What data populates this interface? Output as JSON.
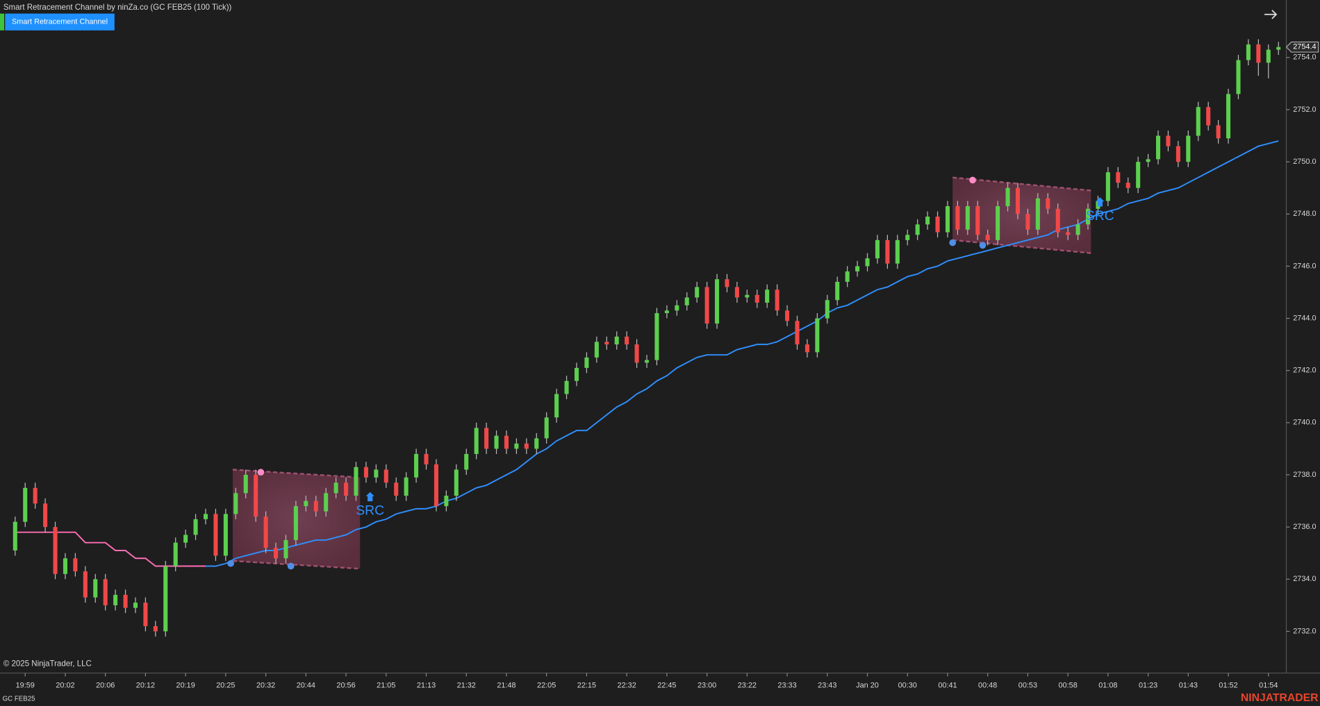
{
  "header": {
    "title": "Smart Retracement Channel by ninZa.co (GC FEB25 (100 Tick))",
    "button": "Smart Retracement Channel"
  },
  "footer": {
    "copyright": "© 2025 NinjaTrader, LLC",
    "instrument": "GC FEB25",
    "logo": "NINJATRADER"
  },
  "chart_data": {
    "type": "candlestick",
    "categories": [
      null,
      "19:59",
      null,
      null,
      null,
      "20:02",
      null,
      null,
      null,
      "20:06",
      null,
      null,
      null,
      "20:12",
      null,
      null,
      null,
      "20:19",
      null,
      null,
      null,
      "20:25",
      null,
      null,
      null,
      "20:32",
      null,
      null,
      null,
      "20:44",
      null,
      null,
      null,
      "20:56",
      null,
      null,
      null,
      "21:05",
      null,
      null,
      null,
      "21:13",
      null,
      null,
      null,
      "21:32",
      null,
      null,
      null,
      "21:48",
      null,
      null,
      null,
      "22:05",
      null,
      null,
      null,
      "22:15",
      null,
      null,
      null,
      "22:32",
      null,
      null,
      null,
      "22:45",
      null,
      null,
      null,
      "23:00",
      null,
      null,
      null,
      "23:22",
      null,
      null,
      null,
      "23:33",
      null,
      null,
      null,
      "23:43",
      null,
      null,
      null,
      "Jan 20",
      null,
      null,
      null,
      "00:30",
      null,
      null,
      null,
      "00:41",
      null,
      null,
      null,
      "00:48",
      null,
      null,
      null,
      "00:53",
      null,
      null,
      null,
      "00:58",
      null,
      null,
      null,
      "01:08",
      null,
      null,
      null,
      "01:23",
      null,
      null,
      null,
      "01:43",
      null,
      null,
      null,
      "01:52",
      null,
      null,
      null,
      "01:54",
      null
    ],
    "open": [
      2735.1,
      2736.2,
      2737.5,
      2736.9,
      2736.0,
      2734.2,
      2734.8,
      2734.3,
      2733.3,
      2734.0,
      2733.0,
      2733.4,
      2732.9,
      2733.1,
      2732.2,
      2732.0,
      2734.5,
      2735.4,
      2735.7,
      2736.3,
      2736.5,
      2734.9,
      2736.5,
      2737.3,
      2738.0,
      2736.4,
      2735.2,
      2734.8,
      2735.5,
      2736.8,
      2737.0,
      2736.6,
      2737.3,
      2737.7,
      2737.2,
      2738.3,
      2737.9,
      2738.2,
      2737.7,
      2737.2,
      2737.9,
      2738.8,
      2738.4,
      2736.8,
      2737.2,
      2738.2,
      2738.8,
      2739.8,
      2739.0,
      2739.5,
      2739.0,
      2739.2,
      2739.0,
      2739.4,
      2740.2,
      2741.1,
      2741.6,
      2742.1,
      2742.5,
      2743.1,
      2743.0,
      2743.3,
      2743.0,
      2742.3,
      2742.4,
      2744.2,
      2744.3,
      2744.5,
      2744.8,
      2745.2,
      2743.8,
      2745.5,
      2745.2,
      2744.8,
      2744.9,
      2744.6,
      2745.1,
      2744.3,
      2743.9,
      2743.0,
      2742.7,
      2744.0,
      2744.7,
      2745.4,
      2745.8,
      2746.0,
      2746.3,
      2747.0,
      2746.1,
      2747.0,
      2747.2,
      2747.6,
      2747.9,
      2747.3,
      2748.3,
      2747.4,
      2748.3,
      2747.2,
      2747.0,
      2748.3,
      2749.0,
      2748.0,
      2747.4,
      2748.6,
      2748.2,
      2747.3,
      2747.2,
      2747.6,
      2748.2,
      2748.5,
      2749.6,
      2749.2,
      2749.0,
      2750.0,
      2750.1,
      2751.0,
      2750.6,
      2750.0,
      2751.0,
      2752.1,
      2751.4,
      2750.9,
      2752.6,
      2753.9,
      2754.5,
      2753.8,
      2754.3
    ],
    "high": [
      2736.4,
      2737.7,
      2737.7,
      2737.1,
      2736.2,
      2735.0,
      2735.0,
      2734.5,
      2734.2,
      2734.2,
      2733.6,
      2733.6,
      2733.3,
      2733.3,
      2732.4,
      2734.7,
      2735.6,
      2735.9,
      2736.5,
      2736.7,
      2736.7,
      2736.7,
      2737.5,
      2738.2,
      2738.2,
      2736.6,
      2735.4,
      2735.7,
      2737.0,
      2737.2,
      2737.2,
      2737.5,
      2737.9,
      2737.9,
      2738.5,
      2738.5,
      2738.4,
      2738.4,
      2737.9,
      2738.1,
      2739.0,
      2739.0,
      2738.6,
      2737.4,
      2738.4,
      2739.0,
      2740.0,
      2740.0,
      2739.7,
      2739.7,
      2739.4,
      2739.4,
      2739.6,
      2740.4,
      2741.3,
      2741.8,
      2742.3,
      2742.7,
      2743.3,
      2743.3,
      2743.5,
      2743.5,
      2743.2,
      2742.6,
      2744.4,
      2744.5,
      2744.7,
      2745.0,
      2745.4,
      2745.4,
      2745.7,
      2745.7,
      2745.4,
      2745.1,
      2745.1,
      2745.3,
      2745.3,
      2744.5,
      2744.1,
      2743.2,
      2744.2,
      2744.9,
      2745.6,
      2746.0,
      2746.2,
      2746.5,
      2747.2,
      2747.2,
      2747.2,
      2747.4,
      2747.8,
      2748.1,
      2748.1,
      2748.5,
      2748.5,
      2748.5,
      2748.5,
      2747.4,
      2748.5,
      2749.2,
      2749.2,
      2748.2,
      2748.8,
      2748.8,
      2748.4,
      2747.5,
      2747.8,
      2748.4,
      2748.7,
      2749.8,
      2749.8,
      2749.4,
      2750.2,
      2750.3,
      2751.2,
      2751.2,
      2750.8,
      2751.2,
      2752.3,
      2752.3,
      2751.6,
      2752.8,
      2754.1,
      2754.7,
      2754.7,
      2754.5,
      2754.6
    ],
    "low": [
      2734.9,
      2736.0,
      2736.7,
      2735.8,
      2734.0,
      2734.0,
      2734.1,
      2733.1,
      2733.1,
      2732.8,
      2732.8,
      2732.7,
      2732.7,
      2732.0,
      2731.8,
      2731.8,
      2734.3,
      2735.2,
      2735.5,
      2736.1,
      2734.7,
      2734.7,
      2736.3,
      2737.1,
      2736.2,
      2735.0,
      2734.6,
      2734.6,
      2735.3,
      2736.6,
      2736.4,
      2736.4,
      2737.1,
      2737.0,
      2737.0,
      2737.7,
      2737.7,
      2737.5,
      2737.0,
      2737.0,
      2737.7,
      2738.2,
      2736.6,
      2736.6,
      2737.0,
      2738.0,
      2738.6,
      2738.8,
      2738.8,
      2738.8,
      2738.8,
      2738.8,
      2738.8,
      2739.2,
      2740.0,
      2740.9,
      2741.4,
      2741.9,
      2742.3,
      2742.8,
      2742.8,
      2742.8,
      2742.1,
      2742.1,
      2742.2,
      2744.0,
      2744.1,
      2744.3,
      2744.6,
      2743.6,
      2743.6,
      2745.0,
      2744.6,
      2744.6,
      2744.4,
      2744.4,
      2744.1,
      2743.7,
      2742.8,
      2742.5,
      2742.5,
      2743.8,
      2744.5,
      2745.2,
      2745.6,
      2745.8,
      2746.1,
      2745.9,
      2745.9,
      2746.8,
      2747.0,
      2747.4,
      2747.1,
      2747.1,
      2747.2,
      2747.2,
      2747.0,
      2746.8,
      2746.8,
      2748.1,
      2747.8,
      2747.2,
      2747.2,
      2748.0,
      2747.1,
      2747.0,
      2747.0,
      2747.4,
      2748.0,
      2748.3,
      2749.0,
      2748.8,
      2748.8,
      2749.8,
      2749.9,
      2750.4,
      2749.8,
      2749.8,
      2750.8,
      2751.2,
      2750.7,
      2750.7,
      2752.4,
      2753.7,
      2753.3,
      2753.2,
      2754.1
    ],
    "close": [
      2736.2,
      2737.5,
      2736.9,
      2736.0,
      2734.2,
      2734.8,
      2734.3,
      2733.3,
      2734.0,
      2733.0,
      2733.4,
      2732.9,
      2733.1,
      2732.2,
      2732.0,
      2734.5,
      2735.4,
      2735.7,
      2736.3,
      2736.5,
      2734.9,
      2736.5,
      2737.3,
      2738.0,
      2736.4,
      2735.2,
      2734.8,
      2735.5,
      2736.8,
      2737.0,
      2736.6,
      2737.3,
      2737.7,
      2737.2,
      2738.3,
      2737.9,
      2738.2,
      2737.7,
      2737.2,
      2737.9,
      2738.8,
      2738.4,
      2736.8,
      2737.2,
      2738.2,
      2738.8,
      2739.8,
      2739.0,
      2739.5,
      2739.0,
      2739.2,
      2739.0,
      2739.4,
      2740.2,
      2741.1,
      2741.6,
      2742.1,
      2742.5,
      2743.1,
      2743.0,
      2743.3,
      2743.0,
      2742.3,
      2742.4,
      2744.2,
      2744.3,
      2744.5,
      2744.8,
      2745.2,
      2743.8,
      2745.5,
      2745.2,
      2744.8,
      2744.9,
      2744.6,
      2745.1,
      2744.3,
      2743.9,
      2743.0,
      2742.7,
      2744.0,
      2744.7,
      2745.4,
      2745.8,
      2746.0,
      2746.3,
      2747.0,
      2746.1,
      2747.0,
      2747.2,
      2747.6,
      2747.9,
      2747.3,
      2748.3,
      2747.4,
      2748.3,
      2747.2,
      2747.0,
      2748.3,
      2749.0,
      2748.0,
      2747.4,
      2748.6,
      2748.2,
      2747.3,
      2747.2,
      2747.6,
      2748.2,
      2748.5,
      2749.6,
      2749.2,
      2749.0,
      2750.0,
      2750.1,
      2751.0,
      2750.6,
      2750.0,
      2751.0,
      2752.1,
      2751.4,
      2750.9,
      2752.6,
      2753.9,
      2754.5,
      2753.8,
      2754.3,
      2754.4
    ],
    "up_color": "#5ccf4f",
    "down_color": "#f04848",
    "lines": [
      {
        "color": "#ff6eb4",
        "values": [
          2735.8,
          2735.8,
          2735.8,
          2735.8,
          2735.8,
          2735.8,
          2735.8,
          2735.4,
          2735.4,
          2735.4,
          2735.1,
          2735.1,
          2734.8,
          2734.8,
          2734.5,
          2734.5,
          2734.5,
          2734.5,
          2734.5,
          2734.5,
          null,
          null,
          null,
          null,
          null,
          null,
          null,
          null,
          null,
          null,
          null,
          null,
          null,
          null,
          null,
          null,
          null,
          null,
          null,
          null,
          null,
          null,
          null,
          null,
          null,
          null,
          null,
          null,
          null,
          null,
          null,
          null,
          null,
          null,
          null,
          null,
          null,
          null,
          null,
          null,
          null,
          null,
          null,
          null,
          null,
          null,
          null,
          null,
          null,
          null,
          null,
          null,
          null,
          null,
          null,
          null,
          null,
          null,
          null,
          null,
          null,
          null,
          null,
          null,
          null,
          null,
          null,
          null,
          null,
          null,
          null,
          null,
          null,
          null,
          null,
          null,
          null,
          null,
          null,
          null,
          null,
          null,
          null,
          null,
          null,
          null,
          null,
          null,
          null,
          null,
          null,
          null,
          null,
          null,
          null,
          null,
          null,
          null,
          null,
          null,
          null,
          null,
          null,
          null,
          null,
          null,
          null
        ]
      },
      {
        "color": "#2f8fff",
        "values": [
          null,
          null,
          null,
          null,
          null,
          null,
          null,
          null,
          null,
          null,
          null,
          null,
          null,
          null,
          null,
          null,
          null,
          null,
          null,
          2734.5,
          2734.5,
          2734.6,
          2734.8,
          2734.9,
          2735.0,
          2735.1,
          2735.1,
          2735.2,
          2735.3,
          2735.4,
          2735.5,
          2735.5,
          2735.6,
          2735.7,
          2735.9,
          2736.0,
          2736.2,
          2736.3,
          2736.5,
          2736.6,
          2736.7,
          2736.7,
          2736.8,
          2737.0,
          2737.1,
          2737.3,
          2737.5,
          2737.6,
          2737.8,
          2738.0,
          2738.2,
          2738.5,
          2738.8,
          2739.0,
          2739.3,
          2739.5,
          2739.7,
          2739.7,
          2740.0,
          2740.3,
          2740.6,
          2740.8,
          2741.1,
          2741.3,
          2741.6,
          2741.8,
          2742.1,
          2742.3,
          2742.5,
          2742.6,
          2742.6,
          2742.6,
          2742.8,
          2742.9,
          2743.0,
          2743.0,
          2743.1,
          2743.3,
          2743.5,
          2743.7,
          2743.9,
          2744.2,
          2744.4,
          2744.5,
          2744.7,
          2744.9,
          2745.1,
          2745.2,
          2745.4,
          2745.6,
          2745.7,
          2745.9,
          2746.0,
          2746.2,
          2746.3,
          2746.4,
          2746.5,
          2746.6,
          2746.7,
          2746.8,
          2746.9,
          2747.0,
          2747.1,
          2747.2,
          2747.4,
          2747.5,
          2747.6,
          2747.8,
          2748.0,
          2748.1,
          2748.2,
          2748.4,
          2748.5,
          2748.6,
          2748.8,
          2748.9,
          2749.0,
          2749.2,
          2749.4,
          2749.6,
          2749.8,
          2750.0,
          2750.2,
          2750.4,
          2750.6,
          2750.7,
          2750.8
        ]
      }
    ],
    "channels": [
      {
        "x": [
          21.7,
          34.4
        ],
        "top": [
          2738.2,
          2737.9
        ],
        "bottom": [
          2734.7,
          2734.4
        ]
      },
      {
        "x": [
          93.5,
          107.3
        ],
        "top": [
          2749.4,
          2748.9
        ],
        "bottom": [
          2747.0,
          2746.5
        ]
      }
    ],
    "dots": [
      {
        "x": 24.5,
        "value": 2738.1,
        "color": "#ff8cc6"
      },
      {
        "x": 21.5,
        "value": 2734.6,
        "color": "#4f8fe8"
      },
      {
        "x": 27.5,
        "value": 2734.5,
        "color": "#4f8fe8"
      },
      {
        "x": 95.5,
        "value": 2749.3,
        "color": "#ff8cc6"
      },
      {
        "x": 93.5,
        "value": 2746.9,
        "color": "#4f8fe8"
      },
      {
        "x": 96.5,
        "value": 2746.8,
        "color": "#4f8fe8"
      }
    ],
    "signals": [
      {
        "x": 35.4,
        "value": 2736.6,
        "label": "SRC",
        "color": "#2f8fff"
      },
      {
        "x": 108.2,
        "value": 2747.9,
        "label": "SRC",
        "color": "#2f8fff"
      }
    ],
    "last_price": 2754.4,
    "ylim": [
      2730.4,
      2756.2
    ],
    "yticks": [
      {
        "value": 2732,
        "label": "2732.0"
      },
      {
        "value": 2734,
        "label": "2734.0"
      },
      {
        "value": 2736,
        "label": "2736.0"
      },
      {
        "value": 2738,
        "label": "2738.0"
      },
      {
        "value": 2740,
        "label": "2740.0"
      },
      {
        "value": 2742,
        "label": "2742.0"
      },
      {
        "value": 2744,
        "label": "2744.0"
      },
      {
        "value": 2746,
        "label": "2746.0"
      },
      {
        "value": 2748,
        "label": "2748.0"
      },
      {
        "value": 2750,
        "label": "2750.0"
      },
      {
        "value": 2752,
        "label": "2752.0"
      },
      {
        "value": 2754,
        "label": "2754.0"
      }
    ],
    "grid": false
  }
}
